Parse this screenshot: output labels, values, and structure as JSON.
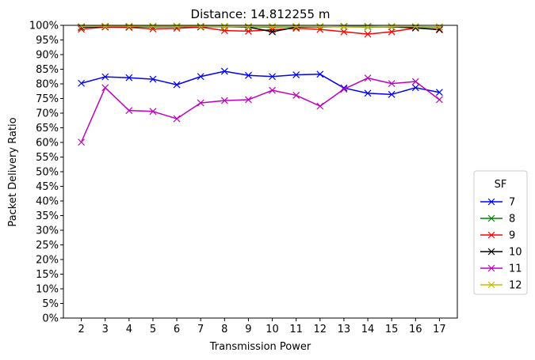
{
  "chart_data": {
    "type": "line",
    "title": "Distance: 14.812255 m",
    "xlabel": "Transmission Power",
    "ylabel": "Packet Delivery Ratio",
    "x": [
      2,
      3,
      4,
      5,
      6,
      7,
      8,
      9,
      10,
      11,
      12,
      13,
      14,
      15,
      16,
      17
    ],
    "xlim": [
      1.25,
      17.75
    ],
    "ylim": [
      0,
      1
    ],
    "y_ticks": [
      0,
      0.05,
      0.1,
      0.15,
      0.2,
      0.25,
      0.3,
      0.35,
      0.4,
      0.45,
      0.5,
      0.55,
      0.6,
      0.65,
      0.7,
      0.75,
      0.8,
      0.85,
      0.9,
      0.95,
      1.0
    ],
    "y_tick_labels": [
      "0%",
      "5%",
      "10%",
      "15%",
      "20%",
      "25%",
      "30%",
      "35%",
      "40%",
      "45%",
      "50%",
      "55%",
      "60%",
      "65%",
      "70%",
      "75%",
      "80%",
      "85%",
      "90%",
      "95%",
      "100%"
    ],
    "grid": false,
    "legend": {
      "title": "SF",
      "placement": "right-outside"
    },
    "series": [
      {
        "name": "7",
        "color": "#0000ff",
        "marker": "x",
        "values": [
          0.802,
          0.824,
          0.821,
          0.816,
          0.797,
          0.825,
          0.843,
          0.829,
          0.825,
          0.831,
          0.833,
          0.786,
          0.768,
          0.764,
          0.787,
          0.771
        ]
      },
      {
        "name": "8",
        "color": "#008000",
        "marker": "x",
        "values": [
          0.995,
          0.996,
          0.995,
          0.995,
          0.996,
          0.996,
          0.995,
          0.995,
          0.994,
          0.995,
          0.995,
          0.995,
          0.994,
          0.995,
          0.995,
          0.994
        ]
      },
      {
        "name": "9",
        "color": "#ff0000",
        "marker": "x",
        "values": [
          0.987,
          0.994,
          0.993,
          0.988,
          0.99,
          0.994,
          0.982,
          0.98,
          0.985,
          0.99,
          0.986,
          0.978,
          0.97,
          0.978,
          0.991,
          0.987
        ]
      },
      {
        "name": "10",
        "color": "#000000",
        "marker": "x",
        "values": [
          0.993,
          0.996,
          0.996,
          0.996,
          0.996,
          0.996,
          0.996,
          0.994,
          0.978,
          0.994,
          0.995,
          0.996,
          0.996,
          0.995,
          0.991,
          0.985
        ]
      },
      {
        "name": "11",
        "color": "#bf00bf",
        "marker": "x",
        "values": [
          0.601,
          0.787,
          0.709,
          0.706,
          0.681,
          0.735,
          0.743,
          0.746,
          0.778,
          0.761,
          0.724,
          0.782,
          0.82,
          0.801,
          0.808,
          0.746
        ]
      },
      {
        "name": "12",
        "color": "#bfbf00",
        "marker": "x",
        "values": [
          0.996,
          0.997,
          0.997,
          0.997,
          0.997,
          0.997,
          0.996,
          0.996,
          0.996,
          0.996,
          0.996,
          0.995,
          0.995,
          0.996,
          0.996,
          0.995
        ]
      }
    ]
  }
}
